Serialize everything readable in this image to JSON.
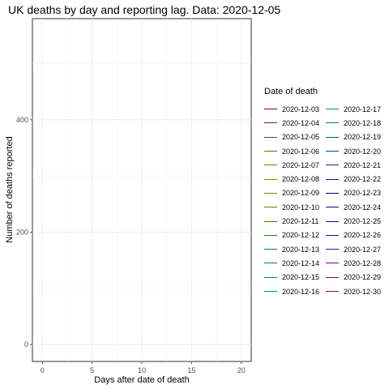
{
  "chart_data": {
    "type": "line",
    "title": "UK deaths by day and reporting lag. Data: 2020-12-05",
    "xlabel": "Days after date of death",
    "ylabel": "Number of deaths reported",
    "xlim": [
      -1,
      21
    ],
    "ylim": [
      -30,
      580
    ],
    "x_ticks": [
      0,
      5,
      10,
      15,
      20
    ],
    "x_tick_labels": [
      "0",
      "5",
      "10",
      "15",
      "20"
    ],
    "y_ticks": [
      0,
      200,
      400
    ],
    "y_tick_labels": [
      "0",
      "200",
      "400"
    ],
    "x_minor_ticks": [
      2.5,
      7.5,
      12.5,
      17.5
    ],
    "y_minor_ticks": [
      100,
      300,
      500
    ],
    "grid": true,
    "legend_position": "right",
    "legend_title": "Date of death",
    "series": [
      {
        "name": "2020-12-03",
        "color": "#8b0000",
        "values": []
      },
      {
        "name": "2020-12-04",
        "color": "#8b1a00",
        "values": []
      },
      {
        "name": "2020-12-05",
        "color": "#8b3a0e",
        "values": []
      },
      {
        "name": "2020-12-06",
        "color": "#8b5a00",
        "values": []
      },
      {
        "name": "2020-12-07",
        "color": "#8b7500",
        "values": []
      },
      {
        "name": "2020-12-08",
        "color": "#8a8b00",
        "values": []
      },
      {
        "name": "2020-12-09",
        "color": "#6b8b00",
        "values": []
      },
      {
        "name": "2020-12-10",
        "color": "#4c8b00",
        "values": []
      },
      {
        "name": "2020-12-11",
        "color": "#2d8b00",
        "values": []
      },
      {
        "name": "2020-12-12",
        "color": "#0e8b00",
        "values": []
      },
      {
        "name": "2020-12-13",
        "color": "#008b1a",
        "values": []
      },
      {
        "name": "2020-12-14",
        "color": "#008b3a",
        "values": []
      },
      {
        "name": "2020-12-15",
        "color": "#008b5a",
        "values": []
      },
      {
        "name": "2020-12-16",
        "color": "#008b7a",
        "values": []
      },
      {
        "name": "2020-12-17",
        "color": "#008b8b",
        "values": []
      },
      {
        "name": "2020-12-18",
        "color": "#00768b",
        "values": []
      },
      {
        "name": "2020-12-19",
        "color": "#005e8b",
        "values": []
      },
      {
        "name": "2020-12-20",
        "color": "#00468b",
        "values": []
      },
      {
        "name": "2020-12-21",
        "color": "#002e8b",
        "values": []
      },
      {
        "name": "2020-12-22",
        "color": "#00168b",
        "values": []
      },
      {
        "name": "2020-12-23",
        "color": "#00008b",
        "values": []
      },
      {
        "name": "2020-12-24",
        "color": "#1a008b",
        "values": []
      },
      {
        "name": "2020-12-25",
        "color": "#32008b",
        "values": []
      },
      {
        "name": "2020-12-26",
        "color": "#4a008b",
        "values": []
      },
      {
        "name": "2020-12-27",
        "color": "#62008b",
        "values": []
      },
      {
        "name": "2020-12-28",
        "color": "#7a008b",
        "values": []
      },
      {
        "name": "2020-12-29",
        "color": "#8b0075",
        "values": []
      },
      {
        "name": "2020-12-30",
        "color": "#8b005a",
        "values": []
      }
    ]
  }
}
